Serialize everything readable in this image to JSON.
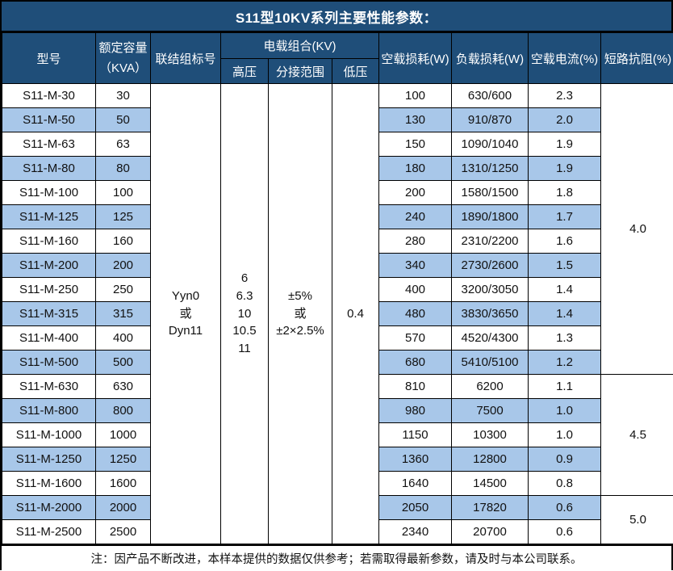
{
  "title": "S11型10KV系列主要性能参数：",
  "footer_note": "注：因产品不断改进，本样本提供的数据仅供参考；若需取得最新参数，请及时与本公司联系。",
  "colors": {
    "header_bg": "#1F4E79",
    "alt_row_bg": "#A8C7E9",
    "border": "#000000",
    "header_text": "#FFFFFF"
  },
  "table": {
    "headers": {
      "model": "型号",
      "capacity": "额定容量\n（KVA）",
      "connection": "联结组标号",
      "voltage_group": "电载组合(KV)",
      "hv": "高压",
      "tap_range": "分接范围",
      "lv": "低压",
      "no_load_loss": "空载损耗(W)",
      "load_loss": "负载损耗(W)",
      "no_load_current": "空载电流(%)",
      "impedance": "短路抗阻(%)"
    },
    "merged": {
      "connection": "Yyn0\n或\nDyn11",
      "hv": "6\n6.3\n10\n10.5\n11",
      "tap_range": "±5%\n或\n±2×2.5%",
      "lv": "0.4"
    },
    "rows": [
      {
        "model": "S11-M-30",
        "capacity": "30",
        "no_load_loss": "100",
        "load_loss": "630/600",
        "no_load_current": "2.3"
      },
      {
        "model": "S11-M-50",
        "capacity": "50",
        "no_load_loss": "130",
        "load_loss": "910/870",
        "no_load_current": "2.0"
      },
      {
        "model": "S11-M-63",
        "capacity": "63",
        "no_load_loss": "150",
        "load_loss": "1090/1040",
        "no_load_current": "1.9"
      },
      {
        "model": "S11-M-80",
        "capacity": "80",
        "no_load_loss": "180",
        "load_loss": "1310/1250",
        "no_load_current": "1.9"
      },
      {
        "model": "S11-M-100",
        "capacity": "100",
        "no_load_loss": "200",
        "load_loss": "1580/1500",
        "no_load_current": "1.8"
      },
      {
        "model": "S11-M-125",
        "capacity": "125",
        "no_load_loss": "240",
        "load_loss": "1890/1800",
        "no_load_current": "1.7"
      },
      {
        "model": "S11-M-160",
        "capacity": "160",
        "no_load_loss": "280",
        "load_loss": "2310/2200",
        "no_load_current": "1.6"
      },
      {
        "model": "S11-M-200",
        "capacity": "200",
        "no_load_loss": "340",
        "load_loss": "2730/2600",
        "no_load_current": "1.5"
      },
      {
        "model": "S11-M-250",
        "capacity": "250",
        "no_load_loss": "400",
        "load_loss": "3200/3050",
        "no_load_current": "1.4"
      },
      {
        "model": "S11-M-315",
        "capacity": "315",
        "no_load_loss": "480",
        "load_loss": "3830/3650",
        "no_load_current": "1.4"
      },
      {
        "model": "S11-M-400",
        "capacity": "400",
        "no_load_loss": "570",
        "load_loss": "4520/4300",
        "no_load_current": "1.3"
      },
      {
        "model": "S11-M-500",
        "capacity": "500",
        "no_load_loss": "680",
        "load_loss": "5410/5100",
        "no_load_current": "1.2"
      },
      {
        "model": "S11-M-630",
        "capacity": "630",
        "no_load_loss": "810",
        "load_loss": "6200",
        "no_load_current": "1.1"
      },
      {
        "model": "S11-M-800",
        "capacity": "800",
        "no_load_loss": "980",
        "load_loss": "7500",
        "no_load_current": "1.0"
      },
      {
        "model": "S11-M-1000",
        "capacity": "1000",
        "no_load_loss": "1150",
        "load_loss": "10300",
        "no_load_current": "1.0"
      },
      {
        "model": "S11-M-1250",
        "capacity": "1250",
        "no_load_loss": "1360",
        "load_loss": "12800",
        "no_load_current": "0.9"
      },
      {
        "model": "S11-M-1600",
        "capacity": "1600",
        "no_load_loss": "1640",
        "load_loss": "14500",
        "no_load_current": "0.8"
      },
      {
        "model": "S11-M-2000",
        "capacity": "2000",
        "no_load_loss": "2050",
        "load_loss": "17820",
        "no_load_current": "0.6"
      },
      {
        "model": "S11-M-2500",
        "capacity": "2500",
        "no_load_loss": "2340",
        "load_loss": "20700",
        "no_load_current": "0.6"
      }
    ],
    "impedance_groups": [
      {
        "value": "4.0",
        "span": 12
      },
      {
        "value": "4.5",
        "span": 5
      },
      {
        "value": "5.0",
        "span": 2
      }
    ]
  }
}
